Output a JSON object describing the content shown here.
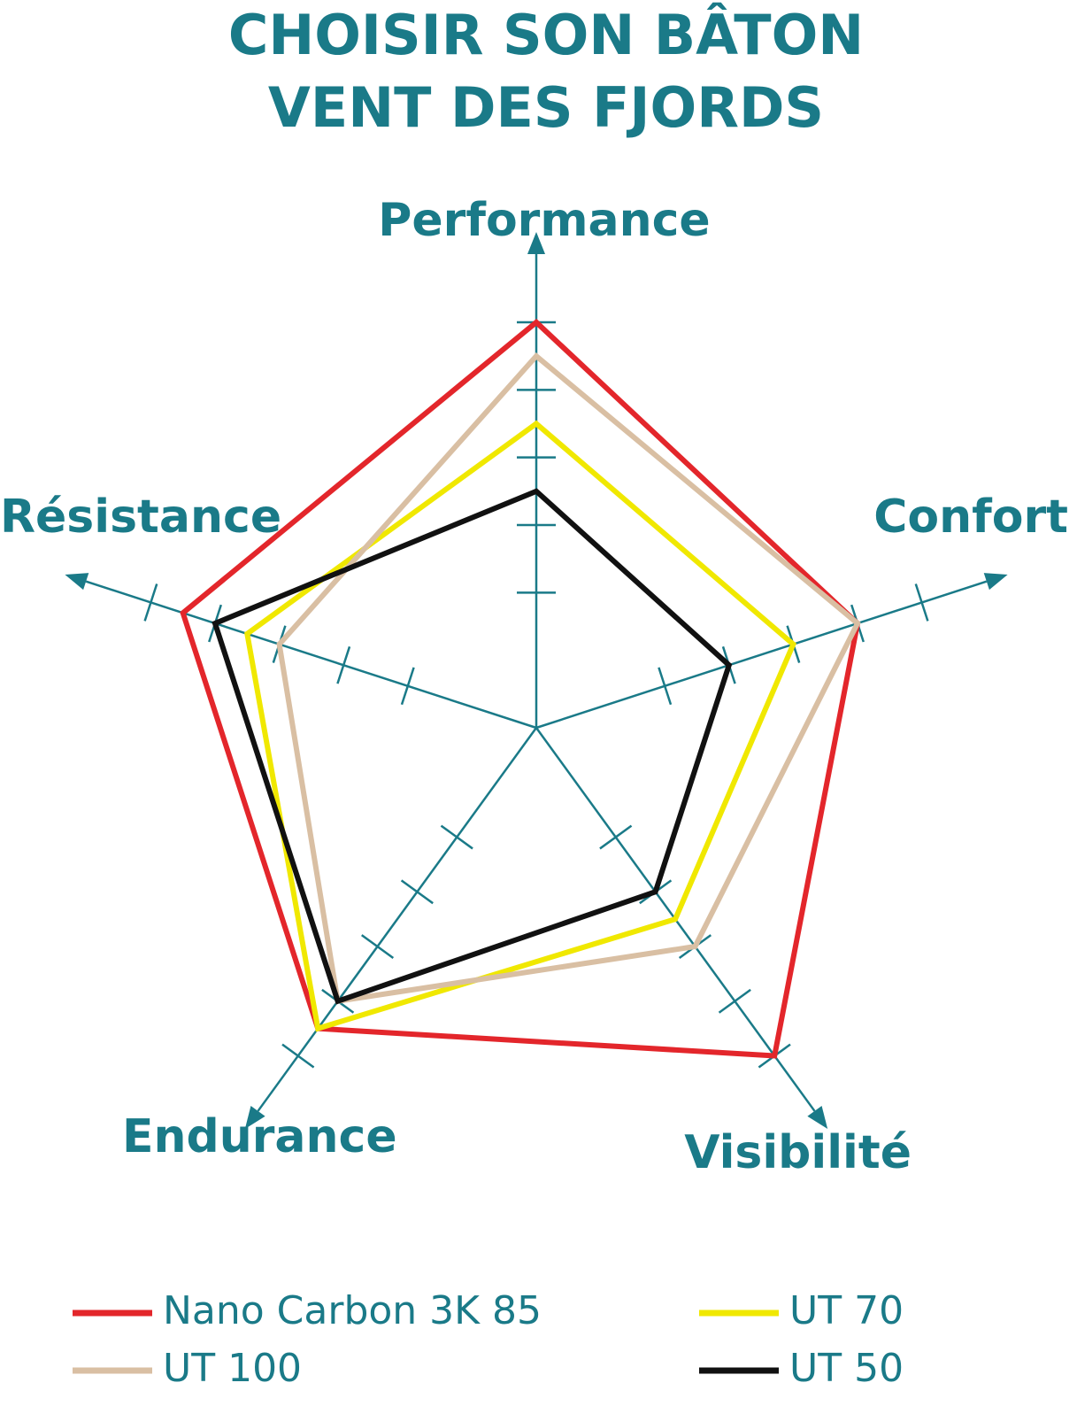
{
  "chart_data": {
    "type": "radar",
    "title": [
      "CHOISIR SON BÂTON",
      "VENT DES FJORDS"
    ],
    "axes": [
      "Performance",
      "Confort",
      "Visibilité",
      "Endurance",
      "Résistance"
    ],
    "rlim": [
      0,
      6
    ],
    "rticks": [
      2,
      3,
      4,
      5,
      6
    ],
    "axis_color": "#1a7a88",
    "series": [
      {
        "name": "Nano Carbon 3K 85",
        "color": "#e3262b",
        "values": [
          6,
          5,
          6,
          5.5,
          5.5
        ]
      },
      {
        "name": "UT 100",
        "color": "#d9bfa3",
        "values": [
          5.5,
          5,
          4,
          5,
          4
        ]
      },
      {
        "name": "UT 70",
        "color": "#f0e800",
        "values": [
          4.5,
          4,
          3.5,
          5.5,
          4.5
        ]
      },
      {
        "name": "UT 50",
        "color": "#111111",
        "values": [
          3.5,
          3,
          3,
          5,
          5
        ]
      }
    ]
  }
}
